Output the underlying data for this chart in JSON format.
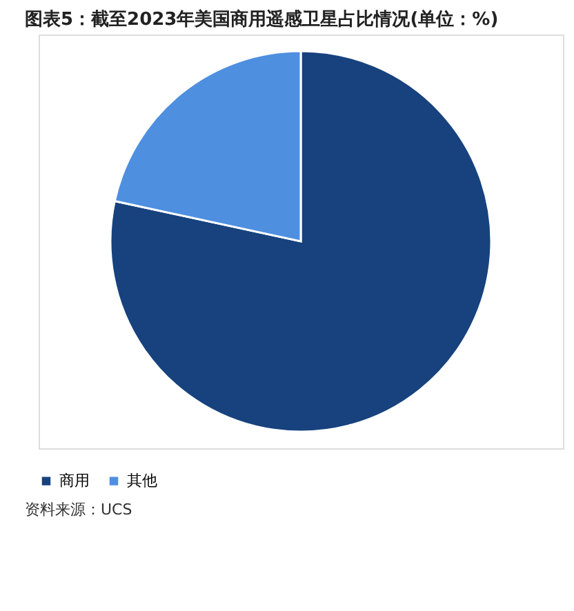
{
  "chart_data": {
    "type": "pie",
    "title": "图表5：截至2023年美国商用遥感卫星占比情况(单位：%)",
    "categories": [
      "商用",
      "其他"
    ],
    "values": [
      78.4,
      21.6
    ],
    "colors": [
      "#17427e",
      "#4e8fe0"
    ],
    "legend": "bottom",
    "annotations": [
      "资料来源：UCS"
    ]
  }
}
